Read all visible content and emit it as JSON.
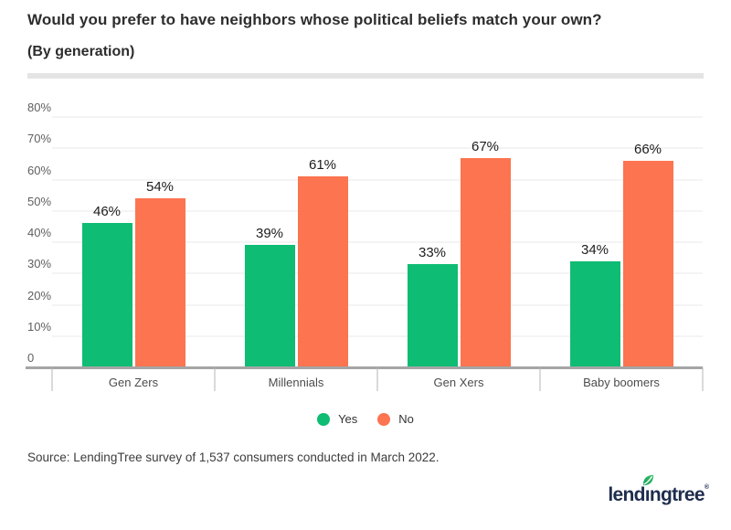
{
  "header": {
    "title": "Would you prefer to have neighbors whose political beliefs match your own?",
    "subtitle": "(By generation)"
  },
  "chart_data": {
    "type": "bar",
    "title": "Would you prefer to have neighbors whose political beliefs match your own?",
    "subtitle": "(By generation)",
    "categories": [
      "Gen Zers",
      "Millennials",
      "Gen Xers",
      "Baby boomers"
    ],
    "series": [
      {
        "name": "Yes",
        "color": "#0EBC73",
        "values": [
          46,
          39,
          33,
          34
        ]
      },
      {
        "name": "No",
        "color": "#FC7450",
        "values": [
          54,
          61,
          67,
          66
        ]
      }
    ],
    "value_suffix": "%",
    "xlabel": "",
    "ylabel": "",
    "ylim": [
      0,
      80
    ],
    "yticks": [
      0,
      10,
      20,
      30,
      40,
      50,
      60,
      70,
      80
    ],
    "ytick_labels": [
      "0",
      "10%",
      "20%",
      "30%",
      "40%",
      "50%",
      "60%",
      "70%",
      "80%"
    ],
    "grid": true,
    "legend_position": "bottom-center"
  },
  "footer": {
    "source": "Source: LendingTree survey of 1,537 consumers conducted in March 2022."
  },
  "logo": {
    "brand": "lendingtree",
    "text_before_leaf": "lend",
    "leaf_letter": "ı",
    "text_after_leaf": "ngtree",
    "registered_mark": "®",
    "text_color": "#1e2d4d",
    "leaf_color_dark": "#0e9f57",
    "leaf_color_light": "#3ec06a"
  },
  "style_colors": {
    "yes_green": "#0EBC73",
    "no_orange": "#FC7450",
    "gridline": "#e8e8e8",
    "axis_line": "#a5a5a5",
    "divider": "#e4e4e4"
  }
}
